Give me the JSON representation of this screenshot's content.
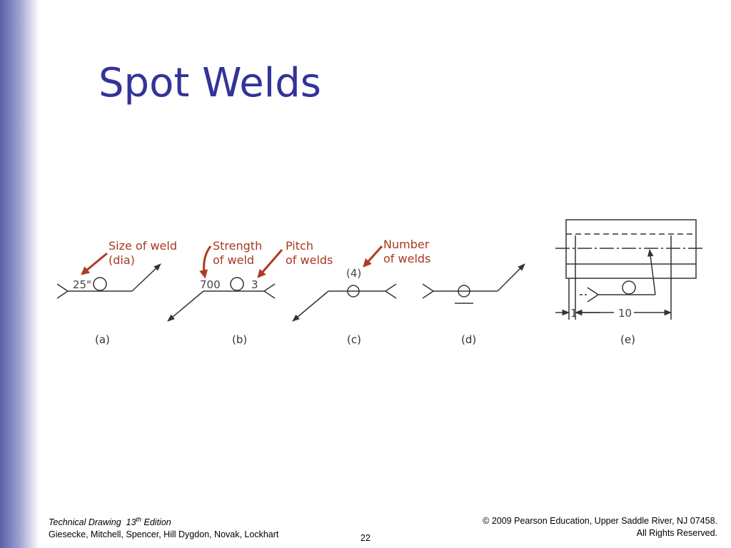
{
  "title": "Spot Welds",
  "figure": {
    "annotations": {
      "size_of_weld": [
        "Size of weld",
        "(dia)"
      ],
      "strength": [
        "Strength",
        "of weld"
      ],
      "pitch": [
        "Pitch",
        "of welds"
      ],
      "number": [
        "Number",
        "of welds"
      ]
    },
    "symbols": {
      "a_size": "25\"",
      "b_strength": "700",
      "b_pitch": "3",
      "c_number": "(4)",
      "e_dim_small": "1",
      "e_dim_large": "10"
    },
    "panel_labels": [
      "(a)",
      "(b)",
      "(c)",
      "(d)",
      "(e)"
    ]
  },
  "footer": {
    "book": "Technical Drawing  13",
    "book_sup": "th",
    "book_edition": " Edition",
    "authors": "Giesecke, Mitchell, Spencer, Hill Dygdon, Novak, Lockhart",
    "page": "22",
    "copyright": [
      "© 2009 Pearson Education, Upper Saddle River, NJ 07458.",
      "All Rights Reserved."
    ]
  }
}
